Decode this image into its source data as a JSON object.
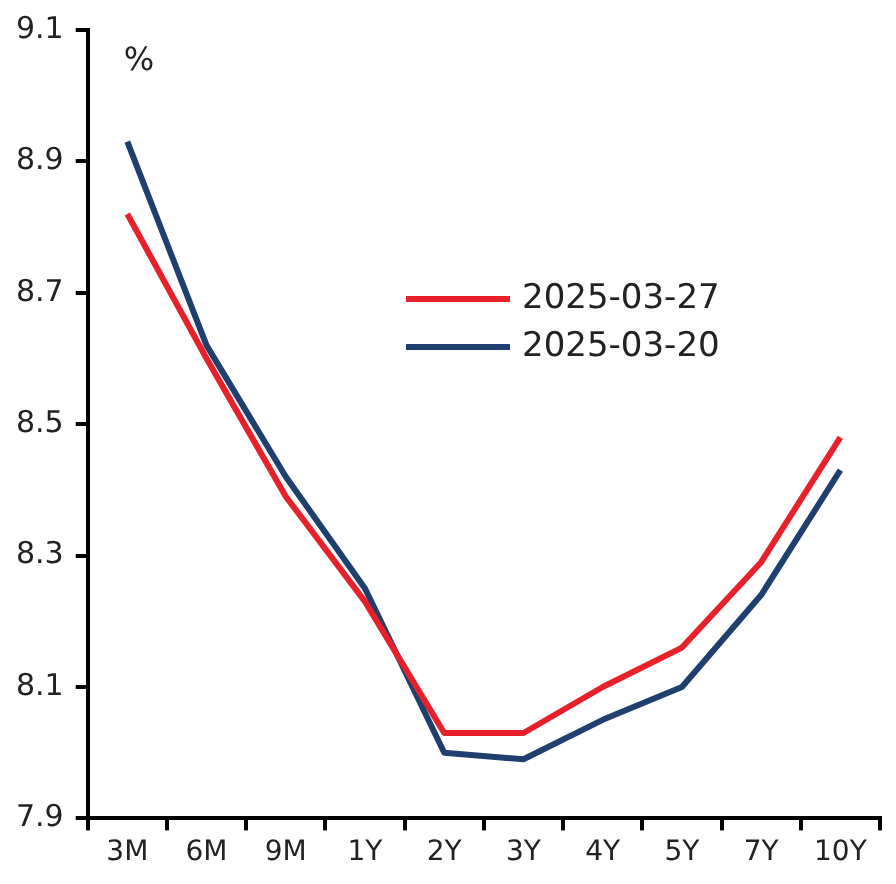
{
  "chart_data": {
    "type": "line",
    "ylabel": "%",
    "categories": [
      "3M",
      "6M",
      "9M",
      "1Y",
      "2Y",
      "3Y",
      "4Y",
      "5Y",
      "7Y",
      "10Y"
    ],
    "series": [
      {
        "name": "2025-03-27",
        "color": "#e8202a",
        "values": [
          8.82,
          8.6,
          8.39,
          8.23,
          8.03,
          8.03,
          8.1,
          8.16,
          8.29,
          8.48
        ]
      },
      {
        "name": "2025-03-20",
        "color": "#1f3f6e",
        "values": [
          8.93,
          8.62,
          8.42,
          8.25,
          8.0,
          7.99,
          8.05,
          8.1,
          8.24,
          8.43
        ]
      }
    ],
    "ylim": [
      7.9,
      9.1
    ],
    "yticks": [
      7.9,
      8.1,
      8.3,
      8.5,
      8.7,
      8.9,
      9.1
    ],
    "grid": false,
    "legend": "center",
    "marker": "none",
    "line_style": "solid"
  }
}
